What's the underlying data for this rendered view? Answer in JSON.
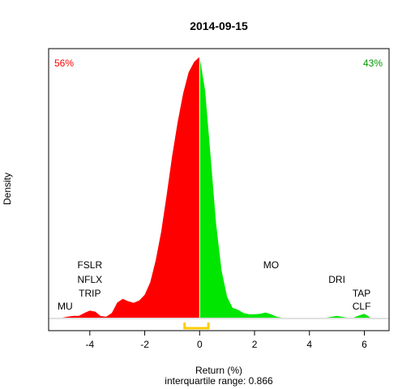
{
  "chart_data": {
    "type": "area",
    "title": "2014-09-15",
    "xlabel": "Return (%)",
    "ylabel": "Density",
    "subtitle": "interquartile range: 0.866",
    "xlim": [
      -5.5,
      6.9
    ],
    "ylim": [
      0,
      1.0
    ],
    "x_ticks": [
      -4,
      -2,
      0,
      2,
      4,
      6
    ],
    "x_tick_labels": [
      "-4",
      "-2",
      "0",
      "2",
      "4",
      "6"
    ],
    "split_at": 0,
    "colors": {
      "negative": "#ff0000",
      "positive": "#00e600",
      "iqr": "#ffcc00",
      "baseline": "#c0c0c0"
    },
    "negative_share_label": "56%",
    "positive_share_label": "43%",
    "iqr_range": [
      -0.55,
      0.32
    ],
    "density": {
      "x": [
        -5.0,
        -4.8,
        -4.6,
        -4.4,
        -4.2,
        -4.0,
        -3.8,
        -3.6,
        -3.4,
        -3.2,
        -3.0,
        -2.8,
        -2.6,
        -2.4,
        -2.2,
        -2.0,
        -1.8,
        -1.6,
        -1.4,
        -1.2,
        -1.0,
        -0.8,
        -0.6,
        -0.4,
        -0.2,
        0.0,
        0.2,
        0.4,
        0.6,
        0.8,
        1.0,
        1.2,
        1.4,
        1.6,
        1.8,
        2.0,
        2.2,
        2.4,
        2.6,
        2.8,
        3.0,
        3.2,
        3.4,
        3.6,
        3.8,
        4.0,
        4.2,
        4.4,
        4.6,
        4.8,
        5.0,
        5.2,
        5.4,
        5.6,
        5.8,
        6.0,
        6.2
      ],
      "y": [
        0.0,
        0.004,
        0.007,
        0.007,
        0.018,
        0.027,
        0.023,
        0.006,
        0.004,
        0.018,
        0.058,
        0.072,
        0.063,
        0.057,
        0.066,
        0.088,
        0.135,
        0.22,
        0.33,
        0.47,
        0.62,
        0.75,
        0.86,
        0.94,
        0.98,
        1.0,
        0.87,
        0.62,
        0.36,
        0.18,
        0.08,
        0.038,
        0.03,
        0.018,
        0.013,
        0.013,
        0.015,
        0.02,
        0.013,
        0.004,
        0.0,
        0.0,
        0.0,
        0.0,
        0.0,
        0.0,
        0.0,
        0.0,
        0.0,
        0.003,
        0.007,
        0.003,
        0.0,
        0.0,
        0.008,
        0.015,
        0.002
      ]
    },
    "tickers": [
      {
        "name": "MU",
        "x": -4.9,
        "y_line": 4
      },
      {
        "name": "TRIP",
        "x": -4.0,
        "y_line": 3
      },
      {
        "name": "NFLX",
        "x": -4.0,
        "y_line": 2
      },
      {
        "name": "FSLR",
        "x": -4.0,
        "y_line": 1
      },
      {
        "name": "MO",
        "x": 2.6,
        "y_line": 1
      },
      {
        "name": "DRI",
        "x": 5.0,
        "y_line": 2
      },
      {
        "name": "TAP",
        "x": 5.9,
        "y_line": 3
      },
      {
        "name": "CLF",
        "x": 5.9,
        "y_line": 4
      }
    ]
  }
}
